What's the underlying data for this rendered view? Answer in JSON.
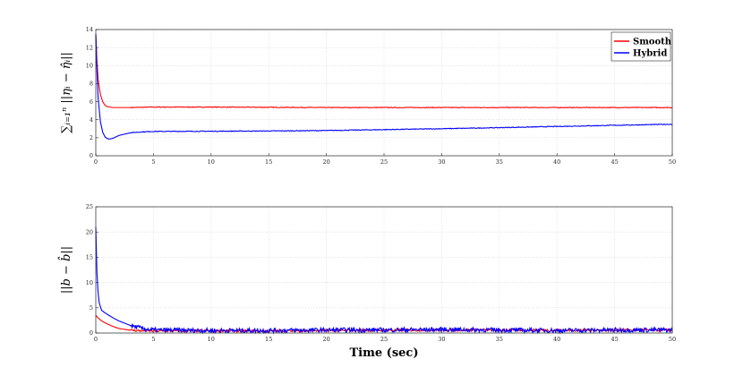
{
  "chart_data": [
    {
      "type": "line",
      "ylabel": "∑ᵢ₌₁ⁿ ||ηᵢ − η̂ᵢ||",
      "xlim": [
        0,
        50
      ],
      "ylim": [
        0,
        14
      ],
      "x_ticks": [
        "0",
        "5",
        "10",
        "15",
        "20",
        "25",
        "30",
        "35",
        "40",
        "45",
        "50"
      ],
      "y_ticks": [
        "0",
        "2",
        "4",
        "6",
        "8",
        "10",
        "12",
        "14"
      ],
      "grid": true,
      "legend": "top-right",
      "series": [
        {
          "name": "Smooth",
          "color": "#ff0000",
          "x": [
            0,
            0.1,
            0.2,
            0.4,
            0.6,
            0.8,
            1,
            1.5,
            2,
            3,
            5,
            10,
            20,
            30,
            40,
            50
          ],
          "y": [
            13.5,
            10.5,
            8.5,
            6.8,
            6.0,
            5.6,
            5.45,
            5.35,
            5.35,
            5.35,
            5.4,
            5.4,
            5.35,
            5.35,
            5.35,
            5.35
          ]
        },
        {
          "name": "Hybrid",
          "color": "#0000ff",
          "x": [
            0,
            0.1,
            0.2,
            0.4,
            0.6,
            0.8,
            1,
            1.2,
            1.5,
            2,
            3,
            4,
            5,
            10,
            15,
            20,
            25,
            30,
            35,
            40,
            45,
            50
          ],
          "y": [
            13.5,
            9.5,
            6.5,
            3.8,
            2.6,
            2.1,
            1.9,
            1.85,
            1.95,
            2.25,
            2.55,
            2.65,
            2.7,
            2.72,
            2.75,
            2.8,
            2.9,
            3.0,
            3.12,
            3.25,
            3.38,
            3.5
          ]
        }
      ]
    },
    {
      "type": "line",
      "ylabel": "||b − b̂||",
      "xlabel": "Time (sec)",
      "xlim": [
        0,
        50
      ],
      "ylim": [
        0,
        25
      ],
      "x_ticks": [
        "0",
        "5",
        "10",
        "15",
        "20",
        "25",
        "30",
        "35",
        "40",
        "45",
        "50"
      ],
      "y_ticks": [
        "0",
        "5",
        "10",
        "15",
        "20",
        "25"
      ],
      "grid": true,
      "series": [
        {
          "name": "Smooth",
          "color": "#ff0000",
          "x": [
            0,
            0.2,
            0.5,
            1,
            1.5,
            2,
            3,
            4,
            5,
            10,
            15,
            20,
            25,
            30,
            35,
            40,
            45,
            50
          ],
          "y": [
            3.5,
            3.0,
            2.4,
            1.8,
            1.3,
            0.9,
            0.55,
            0.45,
            0.4,
            0.45,
            0.4,
            0.5,
            0.55,
            0.6,
            0.6,
            0.55,
            0.6,
            0.6
          ]
        },
        {
          "name": "Hybrid",
          "color": "#0000ff",
          "x": [
            0,
            0.1,
            0.2,
            0.3,
            0.5,
            0.8,
            1,
            1.5,
            2,
            3,
            4,
            5,
            10,
            15,
            20,
            25,
            30,
            35,
            40,
            45,
            50
          ],
          "y": [
            21,
            12,
            8,
            6,
            4.5,
            4,
            3.7,
            3.0,
            2.4,
            1.5,
            0.9,
            0.6,
            0.5,
            0.5,
            0.6,
            0.6,
            0.7,
            0.6,
            0.5,
            0.6,
            0.6
          ]
        }
      ]
    }
  ]
}
